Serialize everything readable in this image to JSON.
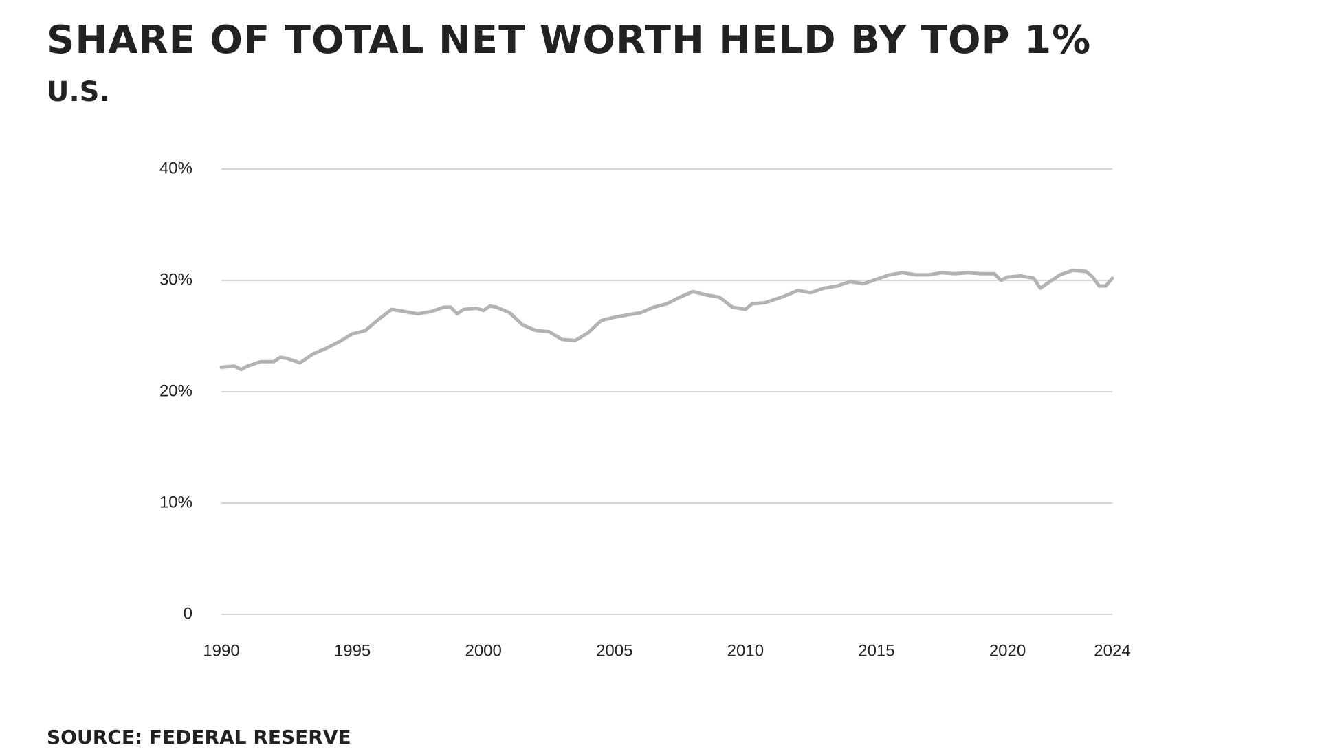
{
  "chart_data": {
    "type": "line",
    "title": "SHARE OF TOTAL NET WORTH HELD BY TOP 1%",
    "subtitle": "U.S.",
    "source": "SOURCE: FEDERAL RESERVE",
    "x": [
      1990,
      1990.5,
      1990.75,
      1991,
      1991.5,
      1992,
      1992.25,
      1992.5,
      1993,
      1993.5,
      1994,
      1994.5,
      1995,
      1995.5,
      1996,
      1996.5,
      1997,
      1997.5,
      1998,
      1998.5,
      1998.75,
      1999,
      1999.25,
      1999.75,
      2000,
      2000.25,
      2000.5,
      2001,
      2001.5,
      2002,
      2002.5,
      2003,
      2003.5,
      2004,
      2004.5,
      2005,
      2005.5,
      2006,
      2006.5,
      2007,
      2007.5,
      2008,
      2008.5,
      2009,
      2009.5,
      2010,
      2010.25,
      2010.75,
      2011,
      2011.5,
      2012,
      2012.5,
      2013,
      2013.5,
      2014,
      2014.5,
      2015,
      2015.5,
      2016,
      2016.5,
      2017,
      2017.5,
      2018,
      2018.5,
      2019,
      2019.5,
      2019.75,
      2020,
      2020.5,
      2021,
      2021.25,
      2021.5,
      2022,
      2022.5,
      2023,
      2023.25,
      2023.5,
      2023.75,
      2024
    ],
    "series": [
      {
        "name": "Top 1%",
        "color": "#b3b3b3",
        "values": [
          22.2,
          22.3,
          22.0,
          22.3,
          22.7,
          22.7,
          23.1,
          23.0,
          22.6,
          23.4,
          23.9,
          24.5,
          25.2,
          25.5,
          26.5,
          27.4,
          27.2,
          27.0,
          27.2,
          27.6,
          27.6,
          27.0,
          27.4,
          27.5,
          27.3,
          27.7,
          27.6,
          27.1,
          26.0,
          25.5,
          25.4,
          24.7,
          24.6,
          25.3,
          26.4,
          26.7,
          26.9,
          27.1,
          27.6,
          27.9,
          28.5,
          29.0,
          28.7,
          28.5,
          27.6,
          27.4,
          27.9,
          28.0,
          28.2,
          28.6,
          29.1,
          28.9,
          29.3,
          29.5,
          29.9,
          29.7,
          30.1,
          30.5,
          30.7,
          30.5,
          30.5,
          30.7,
          30.6,
          30.7,
          30.6,
          30.6,
          30.0,
          30.3,
          30.4,
          30.2,
          29.3,
          29.7,
          30.5,
          30.9,
          30.8,
          30.3,
          29.5,
          29.5,
          30.2
        ]
      }
    ],
    "xlim": [
      1990,
      2024
    ],
    "xticks": [
      1990,
      1995,
      2000,
      2005,
      2010,
      2015,
      2020,
      2024
    ],
    "ylim": [
      0,
      40
    ],
    "yticks": [
      0,
      {
        "value": 10,
        "label": "10%"
      },
      {
        "value": 20,
        "label": "20%"
      },
      {
        "value": 30,
        "label": "30%"
      },
      {
        "value": 40,
        "label": "40%"
      }
    ],
    "grid": true
  }
}
